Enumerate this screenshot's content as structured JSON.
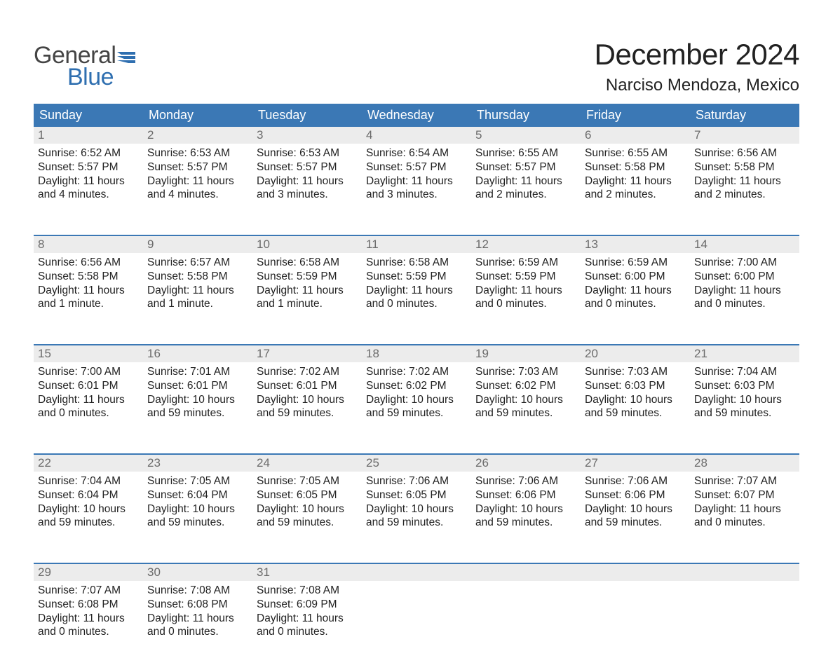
{
  "logo": {
    "word1": "General",
    "word2": "Blue",
    "word1_color": "#444444",
    "word2_color": "#2f6fb0",
    "flag_color": "#2f6fb0"
  },
  "title": "December 2024",
  "location": "Narciso Mendoza, Mexico",
  "colors": {
    "header_bg": "#3b78b5",
    "header_text": "#ffffff",
    "daynum_bg": "#ececec",
    "daynum_text": "#6b6b6b",
    "body_text": "#222222",
    "rule": "#3b78b5",
    "page_bg": "#ffffff"
  },
  "weekdays": [
    "Sunday",
    "Monday",
    "Tuesday",
    "Wednesday",
    "Thursday",
    "Friday",
    "Saturday"
  ],
  "weeks": [
    [
      {
        "n": "1",
        "sunrise": "Sunrise: 6:52 AM",
        "sunset": "Sunset: 5:57 PM",
        "day1": "Daylight: 11 hours",
        "day2": "and 4 minutes."
      },
      {
        "n": "2",
        "sunrise": "Sunrise: 6:53 AM",
        "sunset": "Sunset: 5:57 PM",
        "day1": "Daylight: 11 hours",
        "day2": "and 4 minutes."
      },
      {
        "n": "3",
        "sunrise": "Sunrise: 6:53 AM",
        "sunset": "Sunset: 5:57 PM",
        "day1": "Daylight: 11 hours",
        "day2": "and 3 minutes."
      },
      {
        "n": "4",
        "sunrise": "Sunrise: 6:54 AM",
        "sunset": "Sunset: 5:57 PM",
        "day1": "Daylight: 11 hours",
        "day2": "and 3 minutes."
      },
      {
        "n": "5",
        "sunrise": "Sunrise: 6:55 AM",
        "sunset": "Sunset: 5:57 PM",
        "day1": "Daylight: 11 hours",
        "day2": "and 2 minutes."
      },
      {
        "n": "6",
        "sunrise": "Sunrise: 6:55 AM",
        "sunset": "Sunset: 5:58 PM",
        "day1": "Daylight: 11 hours",
        "day2": "and 2 minutes."
      },
      {
        "n": "7",
        "sunrise": "Sunrise: 6:56 AM",
        "sunset": "Sunset: 5:58 PM",
        "day1": "Daylight: 11 hours",
        "day2": "and 2 minutes."
      }
    ],
    [
      {
        "n": "8",
        "sunrise": "Sunrise: 6:56 AM",
        "sunset": "Sunset: 5:58 PM",
        "day1": "Daylight: 11 hours",
        "day2": "and 1 minute."
      },
      {
        "n": "9",
        "sunrise": "Sunrise: 6:57 AM",
        "sunset": "Sunset: 5:58 PM",
        "day1": "Daylight: 11 hours",
        "day2": "and 1 minute."
      },
      {
        "n": "10",
        "sunrise": "Sunrise: 6:58 AM",
        "sunset": "Sunset: 5:59 PM",
        "day1": "Daylight: 11 hours",
        "day2": "and 1 minute."
      },
      {
        "n": "11",
        "sunrise": "Sunrise: 6:58 AM",
        "sunset": "Sunset: 5:59 PM",
        "day1": "Daylight: 11 hours",
        "day2": "and 0 minutes."
      },
      {
        "n": "12",
        "sunrise": "Sunrise: 6:59 AM",
        "sunset": "Sunset: 5:59 PM",
        "day1": "Daylight: 11 hours",
        "day2": "and 0 minutes."
      },
      {
        "n": "13",
        "sunrise": "Sunrise: 6:59 AM",
        "sunset": "Sunset: 6:00 PM",
        "day1": "Daylight: 11 hours",
        "day2": "and 0 minutes."
      },
      {
        "n": "14",
        "sunrise": "Sunrise: 7:00 AM",
        "sunset": "Sunset: 6:00 PM",
        "day1": "Daylight: 11 hours",
        "day2": "and 0 minutes."
      }
    ],
    [
      {
        "n": "15",
        "sunrise": "Sunrise: 7:00 AM",
        "sunset": "Sunset: 6:01 PM",
        "day1": "Daylight: 11 hours",
        "day2": "and 0 minutes."
      },
      {
        "n": "16",
        "sunrise": "Sunrise: 7:01 AM",
        "sunset": "Sunset: 6:01 PM",
        "day1": "Daylight: 10 hours",
        "day2": "and 59 minutes."
      },
      {
        "n": "17",
        "sunrise": "Sunrise: 7:02 AM",
        "sunset": "Sunset: 6:01 PM",
        "day1": "Daylight: 10 hours",
        "day2": "and 59 minutes."
      },
      {
        "n": "18",
        "sunrise": "Sunrise: 7:02 AM",
        "sunset": "Sunset: 6:02 PM",
        "day1": "Daylight: 10 hours",
        "day2": "and 59 minutes."
      },
      {
        "n": "19",
        "sunrise": "Sunrise: 7:03 AM",
        "sunset": "Sunset: 6:02 PM",
        "day1": "Daylight: 10 hours",
        "day2": "and 59 minutes."
      },
      {
        "n": "20",
        "sunrise": "Sunrise: 7:03 AM",
        "sunset": "Sunset: 6:03 PM",
        "day1": "Daylight: 10 hours",
        "day2": "and 59 minutes."
      },
      {
        "n": "21",
        "sunrise": "Sunrise: 7:04 AM",
        "sunset": "Sunset: 6:03 PM",
        "day1": "Daylight: 10 hours",
        "day2": "and 59 minutes."
      }
    ],
    [
      {
        "n": "22",
        "sunrise": "Sunrise: 7:04 AM",
        "sunset": "Sunset: 6:04 PM",
        "day1": "Daylight: 10 hours",
        "day2": "and 59 minutes."
      },
      {
        "n": "23",
        "sunrise": "Sunrise: 7:05 AM",
        "sunset": "Sunset: 6:04 PM",
        "day1": "Daylight: 10 hours",
        "day2": "and 59 minutes."
      },
      {
        "n": "24",
        "sunrise": "Sunrise: 7:05 AM",
        "sunset": "Sunset: 6:05 PM",
        "day1": "Daylight: 10 hours",
        "day2": "and 59 minutes."
      },
      {
        "n": "25",
        "sunrise": "Sunrise: 7:06 AM",
        "sunset": "Sunset: 6:05 PM",
        "day1": "Daylight: 10 hours",
        "day2": "and 59 minutes."
      },
      {
        "n": "26",
        "sunrise": "Sunrise: 7:06 AM",
        "sunset": "Sunset: 6:06 PM",
        "day1": "Daylight: 10 hours",
        "day2": "and 59 minutes."
      },
      {
        "n": "27",
        "sunrise": "Sunrise: 7:06 AM",
        "sunset": "Sunset: 6:06 PM",
        "day1": "Daylight: 10 hours",
        "day2": "and 59 minutes."
      },
      {
        "n": "28",
        "sunrise": "Sunrise: 7:07 AM",
        "sunset": "Sunset: 6:07 PM",
        "day1": "Daylight: 11 hours",
        "day2": "and 0 minutes."
      }
    ],
    [
      {
        "n": "29",
        "sunrise": "Sunrise: 7:07 AM",
        "sunset": "Sunset: 6:08 PM",
        "day1": "Daylight: 11 hours",
        "day2": "and 0 minutes."
      },
      {
        "n": "30",
        "sunrise": "Sunrise: 7:08 AM",
        "sunset": "Sunset: 6:08 PM",
        "day1": "Daylight: 11 hours",
        "day2": "and 0 minutes."
      },
      {
        "n": "31",
        "sunrise": "Sunrise: 7:08 AM",
        "sunset": "Sunset: 6:09 PM",
        "day1": "Daylight: 11 hours",
        "day2": "and 0 minutes."
      },
      {
        "n": "",
        "sunrise": "",
        "sunset": "",
        "day1": "",
        "day2": ""
      },
      {
        "n": "",
        "sunrise": "",
        "sunset": "",
        "day1": "",
        "day2": ""
      },
      {
        "n": "",
        "sunrise": "",
        "sunset": "",
        "day1": "",
        "day2": ""
      },
      {
        "n": "",
        "sunrise": "",
        "sunset": "",
        "day1": "",
        "day2": ""
      }
    ]
  ]
}
